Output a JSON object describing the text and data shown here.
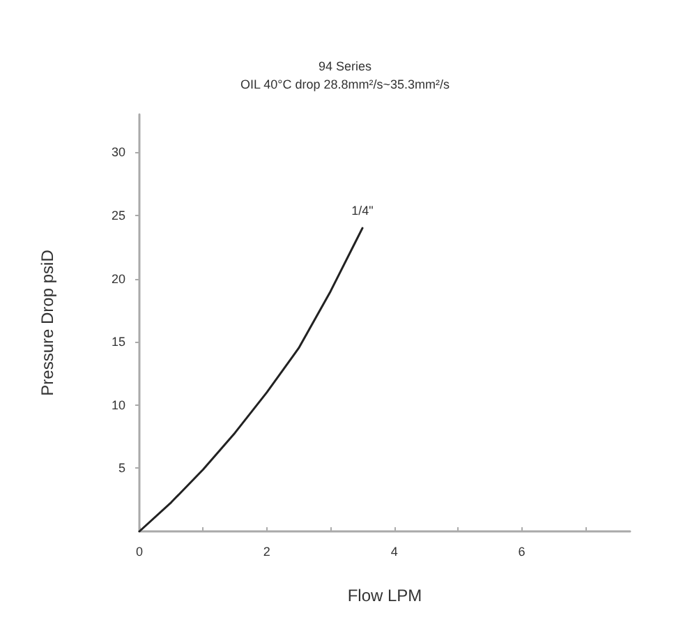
{
  "chart_data": {
    "type": "line",
    "title": "94 Series",
    "subtitle": "OIL 40°C drop 28.8mm²/s~35.3mm²/s",
    "xlabel": "Flow LPM",
    "ylabel": "Pressure Drop psiD",
    "x": [
      0,
      0.5,
      1,
      1.5,
      2,
      2.5,
      3,
      3.5
    ],
    "series": [
      {
        "name": "1/4\"",
        "color": "#222222",
        "values": [
          0,
          2.3,
          4.9,
          7.8,
          11,
          14.5,
          19,
          24
        ]
      }
    ],
    "xlim": [
      0,
      7.7
    ],
    "xticks": [
      0,
      {
        "value": 1,
        "label": null
      },
      2,
      {
        "value": 3,
        "label": null
      },
      4,
      {
        "value": 5,
        "label": null
      },
      6,
      {
        "value": 7,
        "label": null
      }
    ],
    "ylim": [
      0,
      33
    ],
    "yticks": [
      5,
      10,
      15,
      20,
      25,
      30
    ],
    "grid": false,
    "legend": false,
    "marker": "none",
    "line_style": "solid"
  }
}
